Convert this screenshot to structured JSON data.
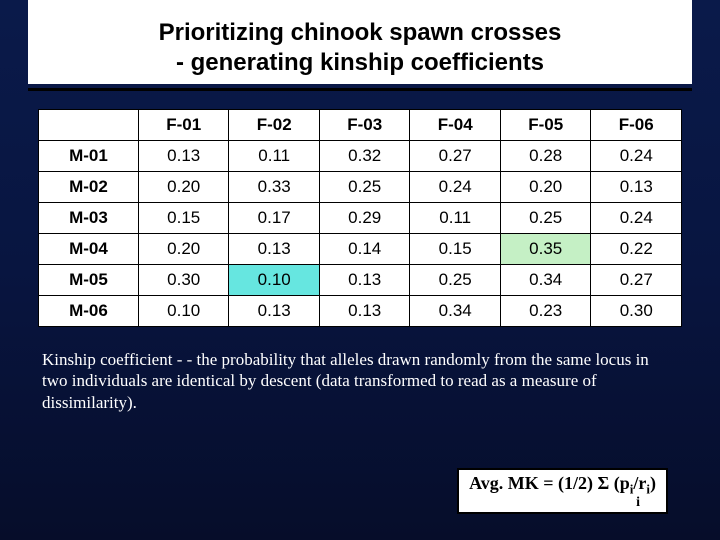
{
  "title": {
    "line1": "Prioritizing chinook spawn crosses",
    "line2": "- generating kinship coefficients"
  },
  "table": {
    "col_headers": [
      "F-01",
      "F-02",
      "F-03",
      "F-04",
      "F-05",
      "F-06"
    ],
    "row_headers": [
      "M-01",
      "M-02",
      "M-03",
      "M-04",
      "M-05",
      "M-06"
    ],
    "rows": [
      [
        "0.13",
        "0.11",
        "0.32",
        "0.27",
        "0.28",
        "0.24"
      ],
      [
        "0.20",
        "0.33",
        "0.25",
        "0.24",
        "0.20",
        "0.13"
      ],
      [
        "0.15",
        "0.17",
        "0.29",
        "0.11",
        "0.25",
        "0.24"
      ],
      [
        "0.20",
        "0.13",
        "0.14",
        "0.15",
        "0.35",
        "0.22"
      ],
      [
        "0.30",
        "0.10",
        "0.13",
        "0.25",
        "0.34",
        "0.27"
      ],
      [
        "0.10",
        "0.13",
        "0.13",
        "0.34",
        "0.23",
        "0.30"
      ]
    ],
    "highlights": [
      {
        "r": 3,
        "c": 4,
        "color": "#c5f0c5"
      },
      {
        "r": 4,
        "c": 1,
        "color": "#66e6e0"
      }
    ],
    "header_fontsize": 17,
    "cell_fontsize": 17,
    "border_color": "#000000",
    "background_color": "#ffffff"
  },
  "kinship_text": "Kinship coefficient - - the probability that alleles drawn randomly from the same locus in two individuals are identical by descent (data transformed to read as a measure of dissimilarity).",
  "formula": {
    "label": "Avg. MK",
    "eq": " = (1/2) Σ (p",
    "sub1": "i",
    "mid": "/r",
    "sub2": "i",
    "close": ")",
    "below": "i",
    "box_bg": "#ffffff",
    "box_border": "#000000"
  },
  "slide_bg_top": "#0a1a4a",
  "slide_bg_bottom": "#060d2a"
}
